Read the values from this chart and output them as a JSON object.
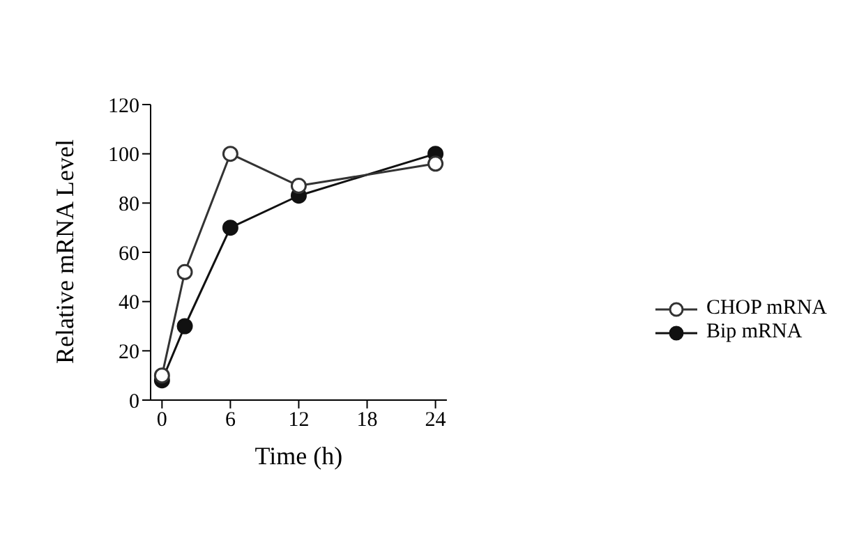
{
  "chart_data": {
    "type": "line",
    "xlabel": "Time (h)",
    "ylabel": "Relative mRNA Level",
    "x": [
      0,
      2,
      6,
      12,
      24
    ],
    "series": [
      {
        "name": "CHOP mRNA",
        "color": "#333333",
        "values": [
          10,
          52,
          100,
          87,
          96
        ]
      },
      {
        "name": "Bip mRNA",
        "color": "#111111",
        "values": [
          8,
          30,
          70,
          83,
          100
        ]
      }
    ],
    "xlim": [
      -1,
      25
    ],
    "xticks": [
      0,
      6,
      12,
      18,
      24
    ],
    "ylim": [
      0,
      120
    ],
    "yticks": [
      0,
      20,
      40,
      60,
      80,
      100,
      120
    ],
    "grid": false,
    "legend": "right",
    "marker": "circle",
    "line_style": "solid"
  }
}
